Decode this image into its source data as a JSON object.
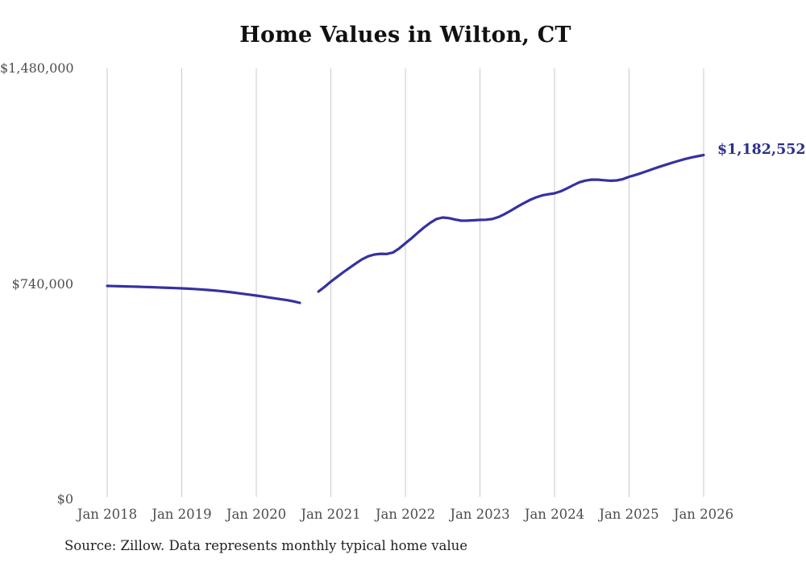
{
  "chart": {
    "colors": {
      "line": "#3432a1",
      "end_label": "#2c2e8c",
      "grid": "#c9c9c9",
      "axis_text": "#4d4d4d",
      "title_text": "#111111",
      "source_text": "#1f1f1f",
      "background": "#ffffff"
    }
  },
  "chart_data": {
    "type": "line",
    "title": "Home Values in Wilton, CT",
    "xlabel": "",
    "ylabel": "",
    "ylim": [
      0,
      1480000
    ],
    "grid": "vertical-only",
    "legend": "none",
    "x_tick_labels": [
      "Jan 2018",
      "Jan 2019",
      "Jan 2020",
      "Jan 2021",
      "Jan 2022",
      "Jan 2023",
      "Jan 2024",
      "Jan 2025",
      "Jan 2026"
    ],
    "y_ticks": [
      {
        "label": "$0",
        "value": 0
      },
      {
        "label": "$740,000",
        "value": 740000
      },
      {
        "label": "$1,480,000",
        "value": 1480000
      }
    ],
    "x_start": "Jan 2018",
    "x_step": "1 month",
    "note": "values are monthly typical home values in USD; nulls are a data gap in Sep-Oct 2020",
    "series": [
      {
        "name": "Typical home value",
        "values": [
          733000,
          732500,
          732000,
          731500,
          731000,
          730300,
          729600,
          728900,
          728100,
          727300,
          726500,
          725700,
          724800,
          723800,
          722600,
          721200,
          719600,
          717800,
          715800,
          713600,
          711200,
          708600,
          705800,
          702900,
          699900,
          696800,
          693600,
          690400,
          687200,
          684000,
          680000,
          675000,
          null,
          null,
          713700,
          730000,
          748000,
          764000,
          780000,
          795000,
          810000,
          824000,
          835000,
          841000,
          843500,
          843000,
          848000,
          862000,
          879700,
          897000,
          916000,
          934000,
          950000,
          963000,
          968200,
          966000,
          961000,
          957100,
          957500,
          958500,
          959900,
          960500,
          963000,
          970000,
          980000,
          992000,
          1005000,
          1017000,
          1028000,
          1037000,
          1044000,
          1048000,
          1051200,
          1058000,
          1068000,
          1079000,
          1089000,
          1095000,
          1098200,
          1098000,
          1096000,
          1094500,
          1095500,
          1100000,
          1107900,
          1114000,
          1121000,
          1128500,
          1136000,
          1143000,
          1150000,
          1156500,
          1163000,
          1169000,
          1174000,
          1178500,
          1182552
        ]
      }
    ],
    "annotations": [
      {
        "text": "$1,182,552",
        "value": 1182552,
        "position": "line-end"
      }
    ],
    "source": "Source: Zillow. Data represents monthly typical home value"
  }
}
